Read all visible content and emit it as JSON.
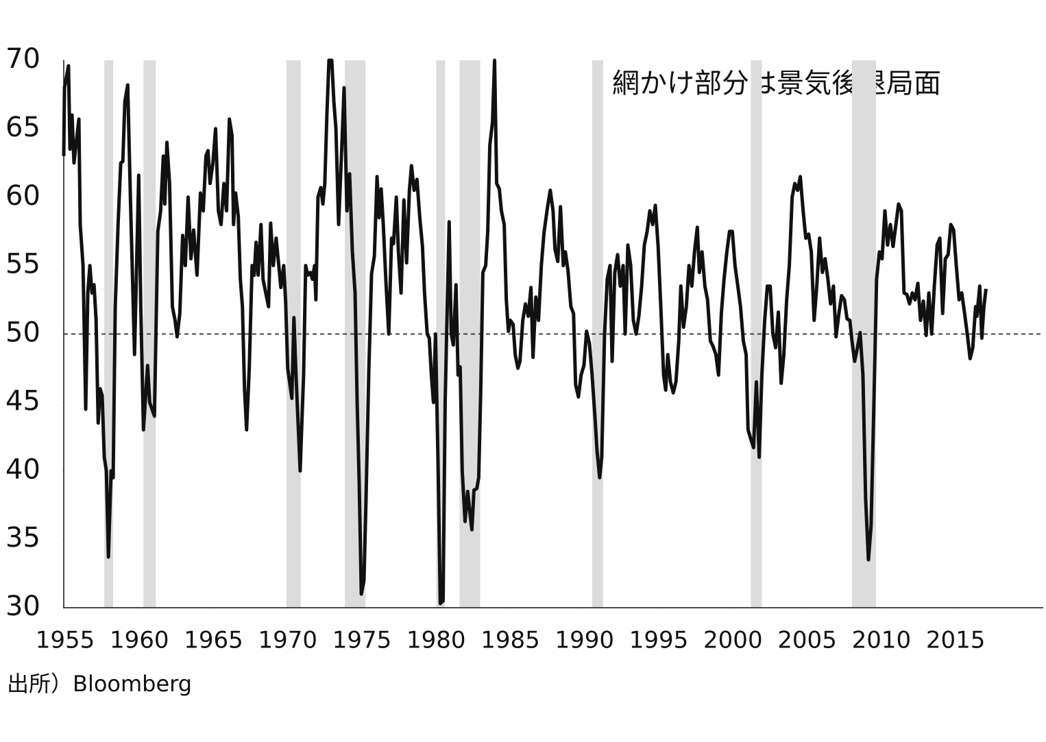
{
  "chart_data": {
    "type": "line",
    "annotation": "網かけ部分は景気後退局面",
    "source": "出所）Bloomberg",
    "color": "#111111",
    "hline": 50,
    "recession_color": "#dcdcdc",
    "recessions": [
      [
        1957.73,
        1958.33
      ],
      [
        1960.37,
        1961.2
      ],
      [
        1970.0,
        1970.97
      ],
      [
        1973.94,
        1975.33
      ],
      [
        1980.1,
        1980.7
      ],
      [
        1981.67,
        1983.06
      ],
      [
        1990.6,
        1991.34
      ],
      [
        2001.3,
        2002.04
      ],
      [
        2008.11,
        2009.73
      ]
    ],
    "xlim": [
      1955,
      2021
    ],
    "xticks": [
      1955,
      1960,
      1965,
      1970,
      1975,
      1980,
      1985,
      1990,
      1995,
      2000,
      2005,
      2010,
      2015
    ],
    "ylim": [
      30,
      70
    ],
    "yticks": [
      30,
      35,
      40,
      45,
      50,
      55,
      60,
      65,
      70
    ],
    "x": [
      1955.0,
      1955.05,
      1955.32,
      1955.42,
      1955.56,
      1955.69,
      1956.02,
      1956.11,
      1956.3,
      1956.48,
      1956.62,
      1956.76,
      1956.9,
      1957.04,
      1957.18,
      1957.32,
      1957.45,
      1957.59,
      1957.73,
      1957.87,
      1958.01,
      1958.19,
      1958.33,
      1958.47,
      1958.66,
      1958.84,
      1958.98,
      1959.12,
      1959.31,
      1959.49,
      1959.77,
      1960.05,
      1960.19,
      1960.37,
      1960.65,
      1960.79,
      1961.11,
      1961.34,
      1961.53,
      1961.71,
      1961.81,
      1961.95,
      1962.13,
      1962.32,
      1962.5,
      1962.64,
      1962.82,
      1963.01,
      1963.19,
      1963.38,
      1963.57,
      1963.75,
      1963.98,
      1964.21,
      1964.4,
      1964.58,
      1964.72,
      1964.86,
      1965.05,
      1965.23,
      1965.42,
      1965.6,
      1965.79,
      1965.97,
      1966.16,
      1966.34,
      1966.44,
      1966.58,
      1966.76,
      1966.9,
      1967.04,
      1967.18,
      1967.32,
      1967.5,
      1967.69,
      1967.83,
      1967.96,
      1968.1,
      1968.29,
      1968.43,
      1968.61,
      1968.8,
      1968.94,
      1969.12,
      1969.31,
      1969.49,
      1969.63,
      1969.82,
      1969.95,
      1970.09,
      1970.37,
      1970.51,
      1970.65,
      1970.93,
      1971.16,
      1971.3,
      1971.44,
      1971.62,
      1971.76,
      1971.9,
      1971.99,
      1972.13,
      1972.32,
      1972.46,
      1972.59,
      1972.73,
      1972.87,
      1973.06,
      1973.2,
      1973.34,
      1973.52,
      1973.71,
      1973.89,
      1974.08,
      1974.26,
      1974.45,
      1974.63,
      1974.77,
      1974.91,
      1975.05,
      1975.23,
      1975.37,
      1975.56,
      1975.74,
      1975.93,
      1976.11,
      1976.25,
      1976.39,
      1976.53,
      1976.71,
      1976.9,
      1977.09,
      1977.22,
      1977.41,
      1977.55,
      1977.73,
      1977.92,
      1978.1,
      1978.29,
      1978.43,
      1978.61,
      1978.8,
      1978.99,
      1979.17,
      1979.31,
      1979.49,
      1979.63,
      1979.77,
      1979.91,
      1980.05,
      1980.23,
      1980.37,
      1980.56,
      1980.7,
      1980.84,
      1980.97,
      1981.11,
      1981.25,
      1981.43,
      1981.57,
      1981.71,
      1981.85,
      1982.04,
      1982.22,
      1982.36,
      1982.5,
      1982.64,
      1982.83,
      1982.96,
      1983.1,
      1983.24,
      1983.43,
      1983.57,
      1983.71,
      1983.89,
      1984.03,
      1984.17,
      1984.35,
      1984.49,
      1984.68,
      1984.82,
      1984.96,
      1985.09,
      1985.28,
      1985.42,
      1985.6,
      1985.74,
      1985.93,
      1986.11,
      1986.3,
      1986.48,
      1986.62,
      1986.81,
      1986.99,
      1987.18,
      1987.36,
      1987.6,
      1987.78,
      1987.97,
      1988.1,
      1988.29,
      1988.47,
      1988.66,
      1988.8,
      1988.98,
      1989.17,
      1989.35,
      1989.49,
      1989.68,
      1989.86,
      1990.05,
      1990.23,
      1990.42,
      1990.6,
      1990.79,
      1990.93,
      1991.11,
      1991.25,
      1991.44,
      1991.62,
      1991.81,
      1991.95,
      1992.13,
      1992.32,
      1992.5,
      1992.69,
      1992.83,
      1993.01,
      1993.2,
      1993.38,
      1993.57,
      1993.75,
      1993.94,
      1994.12,
      1994.31,
      1994.49,
      1994.68,
      1994.86,
      1995.05,
      1995.23,
      1995.42,
      1995.56,
      1995.7,
      1995.88,
      1996.07,
      1996.25,
      1996.44,
      1996.58,
      1996.76,
      1996.95,
      1997.13,
      1997.32,
      1997.5,
      1997.69,
      1997.83,
      1998.01,
      1998.2,
      1998.38,
      1998.57,
      1998.75,
      1998.94,
      1999.12,
      1999.31,
      1999.49,
      1999.68,
      1999.86,
      2000.05,
      2000.23,
      2000.42,
      2000.6,
      2000.79,
      2000.98,
      2001.11,
      2001.3,
      2001.48,
      2001.67,
      2001.86,
      2002.04,
      2002.23,
      2002.41,
      2002.6,
      2002.78,
      2002.97,
      2003.15,
      2003.34,
      2003.52,
      2003.71,
      2003.89,
      2004.08,
      2004.26,
      2004.45,
      2004.63,
      2004.82,
      2005.0,
      2005.19,
      2005.37,
      2005.56,
      2005.74,
      2005.93,
      2006.12,
      2006.3,
      2006.49,
      2006.67,
      2006.86,
      2007.04,
      2007.23,
      2007.41,
      2007.6,
      2007.78,
      2007.97,
      2008.11,
      2008.29,
      2008.48,
      2008.66,
      2008.85,
      2009.03,
      2009.22,
      2009.4,
      2009.59,
      2009.77,
      2009.96,
      2010.14,
      2010.33,
      2010.51,
      2010.7,
      2010.88,
      2011.07,
      2011.25,
      2011.44,
      2011.62,
      2011.81,
      2011.99,
      2012.18,
      2012.36,
      2012.55,
      2012.73,
      2012.92,
      2013.11,
      2013.29,
      2013.48,
      2013.66,
      2013.85,
      2014.03,
      2014.22,
      2014.4,
      2014.59,
      2014.77,
      2014.96,
      2015.14,
      2015.33,
      2015.51,
      2015.7,
      2015.88,
      2016.07,
      2016.25,
      2016.44,
      2016.53,
      2016.72,
      2016.86,
      2017.0,
      2017.14
    ],
    "values": [
      63,
      68,
      69.6,
      63.5,
      66,
      62.5,
      65.7,
      58,
      55,
      44.5,
      53,
      55,
      53,
      53.6,
      51,
      43.5,
      46,
      45.5,
      41,
      40,
      33.7,
      40,
      39.5,
      52,
      58,
      62.5,
      62.6,
      67,
      68.2,
      60,
      48.5,
      61.6,
      52,
      43,
      47.7,
      45,
      44,
      57.5,
      59,
      63,
      59.5,
      64,
      61,
      52,
      51,
      49.8,
      51.5,
      57.2,
      55,
      60,
      55.5,
      57.6,
      54.3,
      60.3,
      59,
      63,
      63.4,
      61,
      62.5,
      65,
      59,
      58,
      61,
      59,
      65.7,
      64.5,
      58,
      60.3,
      58.6,
      54,
      52,
      46,
      43,
      47.5,
      55,
      54.3,
      56.7,
      54.3,
      58,
      54,
      53,
      52,
      58.1,
      55,
      57,
      55,
      53.4,
      55,
      52.4,
      47.5,
      45.3,
      51.2,
      47,
      40,
      47,
      55,
      54.3,
      54.5,
      54,
      55,
      52.5,
      60,
      60.7,
      59.5,
      61,
      66,
      70,
      70,
      67,
      65,
      58,
      63,
      68,
      59,
      61.7,
      56,
      53,
      45,
      39,
      31,
      32,
      38,
      47.5,
      54.4,
      55.7,
      61.5,
      58.5,
      60.6,
      58,
      53.8,
      50,
      57,
      56.6,
      60,
      56,
      53,
      59.8,
      55.2,
      60.5,
      62.3,
      60.5,
      61.3,
      58.5,
      56.4,
      53,
      50,
      49.7,
      47,
      45,
      50,
      40,
      30.3,
      30.5,
      45,
      52,
      58.2,
      50,
      49.2,
      53.6,
      47,
      47.6,
      40,
      36.3,
      38.5,
      37,
      35.7,
      38.6,
      38.7,
      39.5,
      46,
      54.5,
      55,
      57.5,
      63.8,
      65.5,
      70,
      61,
      60.6,
      59,
      58,
      52.5,
      50.2,
      51,
      50.7,
      48.5,
      47.5,
      48,
      51,
      52.2,
      51.3,
      53.4,
      48.3,
      52.7,
      51,
      55,
      57.4,
      59.3,
      60.5,
      59,
      56.2,
      55.3,
      59.3,
      55,
      56,
      54.6,
      52,
      51.5,
      46.3,
      45.4,
      47,
      47.7,
      50.2,
      49.3,
      47,
      44,
      41.5,
      39.5,
      41,
      50,
      54,
      55,
      48,
      54.5,
      55.8,
      53.5,
      55,
      50,
      56.5,
      55,
      51,
      50,
      51.3,
      53.5,
      56.5,
      57.5,
      59,
      58,
      59.4,
      56.4,
      52,
      47,
      45.9,
      48.5,
      46.5,
      45.7,
      46.5,
      49.5,
      53.5,
      50.5,
      52,
      55,
      53.5,
      56,
      57.8,
      54.5,
      56,
      53.5,
      52.5,
      49.5,
      49.1,
      48.5,
      47,
      51.5,
      54,
      56,
      57.5,
      57.5,
      55,
      53.5,
      52,
      49.5,
      48.5,
      43,
      42.3,
      41.7,
      46.5,
      41,
      47,
      51,
      53.5,
      53.5,
      50,
      49,
      51.6,
      46.4,
      48.5,
      52.5,
      55,
      60,
      61,
      60.5,
      61.5,
      59,
      57,
      57.3,
      56,
      51,
      53.5,
      57,
      54.5,
      55.5,
      54,
      52.2,
      53.5,
      49.8,
      51.5,
      52.8,
      52.5,
      51.1,
      51,
      49.5,
      48,
      49,
      50.1,
      47,
      38,
      33.5,
      36,
      45,
      54,
      56,
      55.5,
      59,
      56.5,
      58,
      56.4,
      58,
      59.5,
      59,
      53,
      52.9,
      52.2,
      53,
      52.5,
      53.7,
      51,
      52.4,
      49.9,
      53,
      50,
      53.5,
      56.5,
      57,
      51.5,
      55.5,
      55.8,
      58,
      57.6,
      55,
      52.5,
      53,
      51.5,
      50,
      48.2,
      49,
      52,
      51.3,
      53.5,
      49.7,
      52,
      53.3
    ]
  }
}
